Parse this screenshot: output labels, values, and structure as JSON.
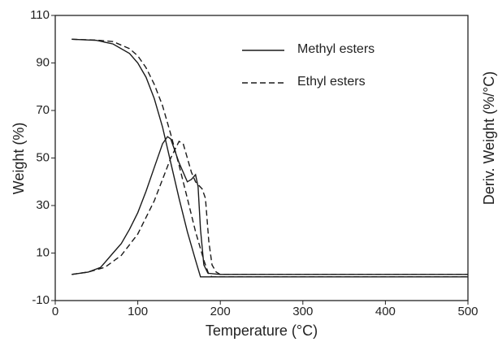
{
  "chart_data": {
    "type": "line",
    "x_label": "Temperature (°C)",
    "y_label": "Weight (%)",
    "y2_label": "Deriv. Weight (%/°C)",
    "xlim": [
      0,
      500
    ],
    "xticks": [
      0,
      100,
      200,
      300,
      400,
      500
    ],
    "ylim": [
      -10,
      110
    ],
    "yticks": [
      -10,
      10,
      30,
      50,
      70,
      90,
      110
    ],
    "y2lim": [
      -10,
      110
    ],
    "legend": "upper right",
    "series": [
      {
        "name": "Methyl esters",
        "color": "#1a1a1a",
        "dash": false,
        "x": [
          20,
          50,
          70,
          90,
          100,
          110,
          120,
          130,
          140,
          150,
          160,
          170,
          176,
          200,
          300,
          400,
          500
        ],
        "values": [
          100,
          99.5,
          98,
          94,
          90,
          84,
          75,
          63,
          48,
          33,
          19,
          7,
          0,
          0,
          0,
          0,
          0
        ]
      },
      {
        "name": "Ethyl esters",
        "color": "#1a1a1a",
        "dash": true,
        "x": [
          20,
          50,
          70,
          90,
          100,
          110,
          120,
          130,
          140,
          150,
          160,
          170,
          180,
          186,
          190,
          200,
          500
        ],
        "values": [
          100,
          99.6,
          99,
          96,
          93,
          88,
          81,
          72,
          60,
          47,
          33,
          19,
          7,
          1,
          0,
          0,
          0
        ]
      },
      {
        "color": "#1a1a1a",
        "dash": false,
        "axis": "y2",
        "x": [
          20,
          40,
          55,
          70,
          80,
          90,
          100,
          110,
          120,
          130,
          136,
          140,
          150,
          160,
          165,
          170,
          173,
          176,
          180,
          185,
          200,
          500
        ],
        "values": [
          1,
          2,
          4,
          10,
          14,
          20,
          27,
          36,
          46,
          56,
          59,
          58,
          48,
          40,
          41,
          43,
          38,
          20,
          5,
          1.5,
          1,
          1
        ]
      },
      {
        "color": "#1a1a1a",
        "dash": true,
        "axis": "y2",
        "x": [
          20,
          40,
          60,
          80,
          100,
          120,
          140,
          150,
          155,
          160,
          165,
          170,
          178,
          182,
          186,
          190,
          195,
          200,
          500
        ],
        "values": [
          1,
          2,
          4,
          9,
          18,
          32,
          50,
          57,
          56,
          50,
          44,
          40,
          37,
          33,
          15,
          5,
          2,
          1,
          1
        ]
      }
    ]
  }
}
